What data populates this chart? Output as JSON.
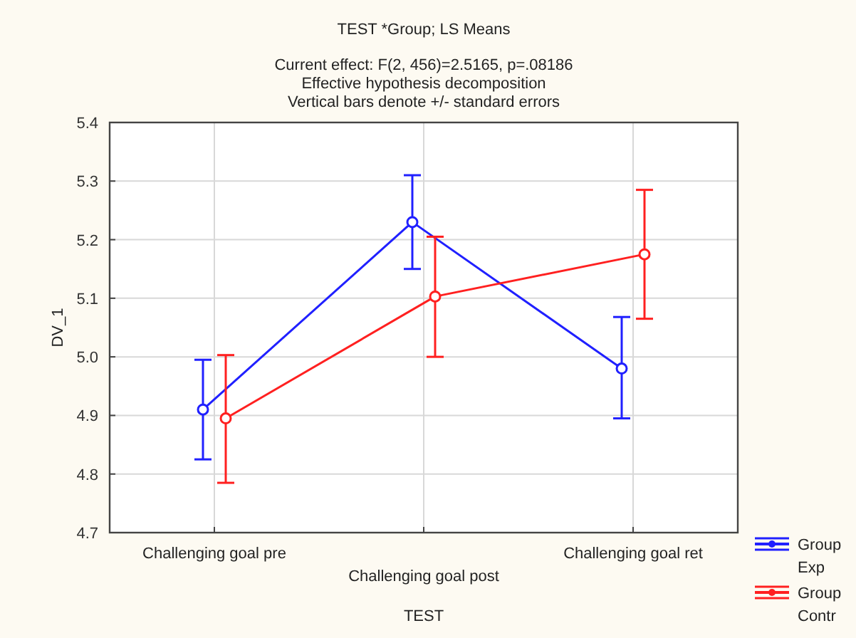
{
  "chart_data": {
    "type": "line",
    "title": "TEST *Group; LS Means",
    "subtitle": "Current effect: F(2, 456)=2.5165, p=.08186",
    "annotations": [
      "Effective hypothesis decomposition",
      "Vertical bars denote +/- standard errors"
    ],
    "xlabel": "TEST",
    "ylabel": "DV_1",
    "categories": [
      "Challenging goal pre",
      "Challenging goal post",
      "Challenging goal ret"
    ],
    "series": [
      {
        "name": "Group Exp",
        "color": "#2020ff",
        "values": [
          4.91,
          5.23,
          4.98
        ],
        "errors": [
          [
            4.825,
            4.995
          ],
          [
            5.15,
            5.31
          ],
          [
            4.895,
            5.068
          ]
        ]
      },
      {
        "name": "Group Contr",
        "color": "#ff2020",
        "values": [
          4.895,
          5.103,
          5.175
        ],
        "errors": [
          [
            4.785,
            5.003
          ],
          [
            5.0,
            5.205
          ],
          [
            5.065,
            5.285
          ]
        ]
      }
    ],
    "ylim": [
      4.7,
      5.4
    ],
    "yticks": [
      4.7,
      4.8,
      4.9,
      {
        "value": 5,
        "label": "5.0"
      },
      5.1,
      5.2,
      5.3,
      5.4
    ],
    "grid": true,
    "legend": "bottom right",
    "marker": "circle",
    "line_style": "solid"
  }
}
